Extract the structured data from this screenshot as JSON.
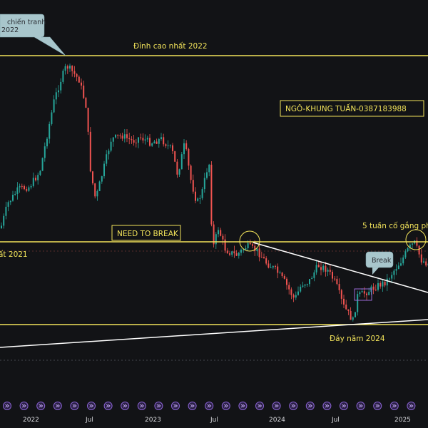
{
  "chart_data": {
    "type": "candlestick",
    "x_axis": {
      "tick_labels": [
        "2022",
        "Jul",
        "2023",
        "Jul",
        "2024",
        "Jul",
        "2025"
      ]
    },
    "horizontal_levels": [
      {
        "label": "Đỉnh cao nhất 2022",
        "color": "#f2e35a"
      },
      {
        "label": "ất 2021",
        "color": "#f2e35a"
      },
      {
        "label": "Đáy năm 2024",
        "color": "#f2e35a"
      }
    ],
    "annotations": {
      "callout_top": [
        "chiến tranh",
        "2022"
      ],
      "signature_box": "NGÔ-KHUNG TUẤN-0387183988",
      "need_to_break": "NEED TO BREAK",
      "five_weeks": "5 tuần cố gắng ph",
      "break_callout": "Break"
    },
    "colors": {
      "background": "#121316",
      "up": "#26a69a",
      "down": "#ef5350",
      "level": "#f2e35a",
      "trendline": "#ffffff"
    },
    "event_icon_count": 25
  }
}
